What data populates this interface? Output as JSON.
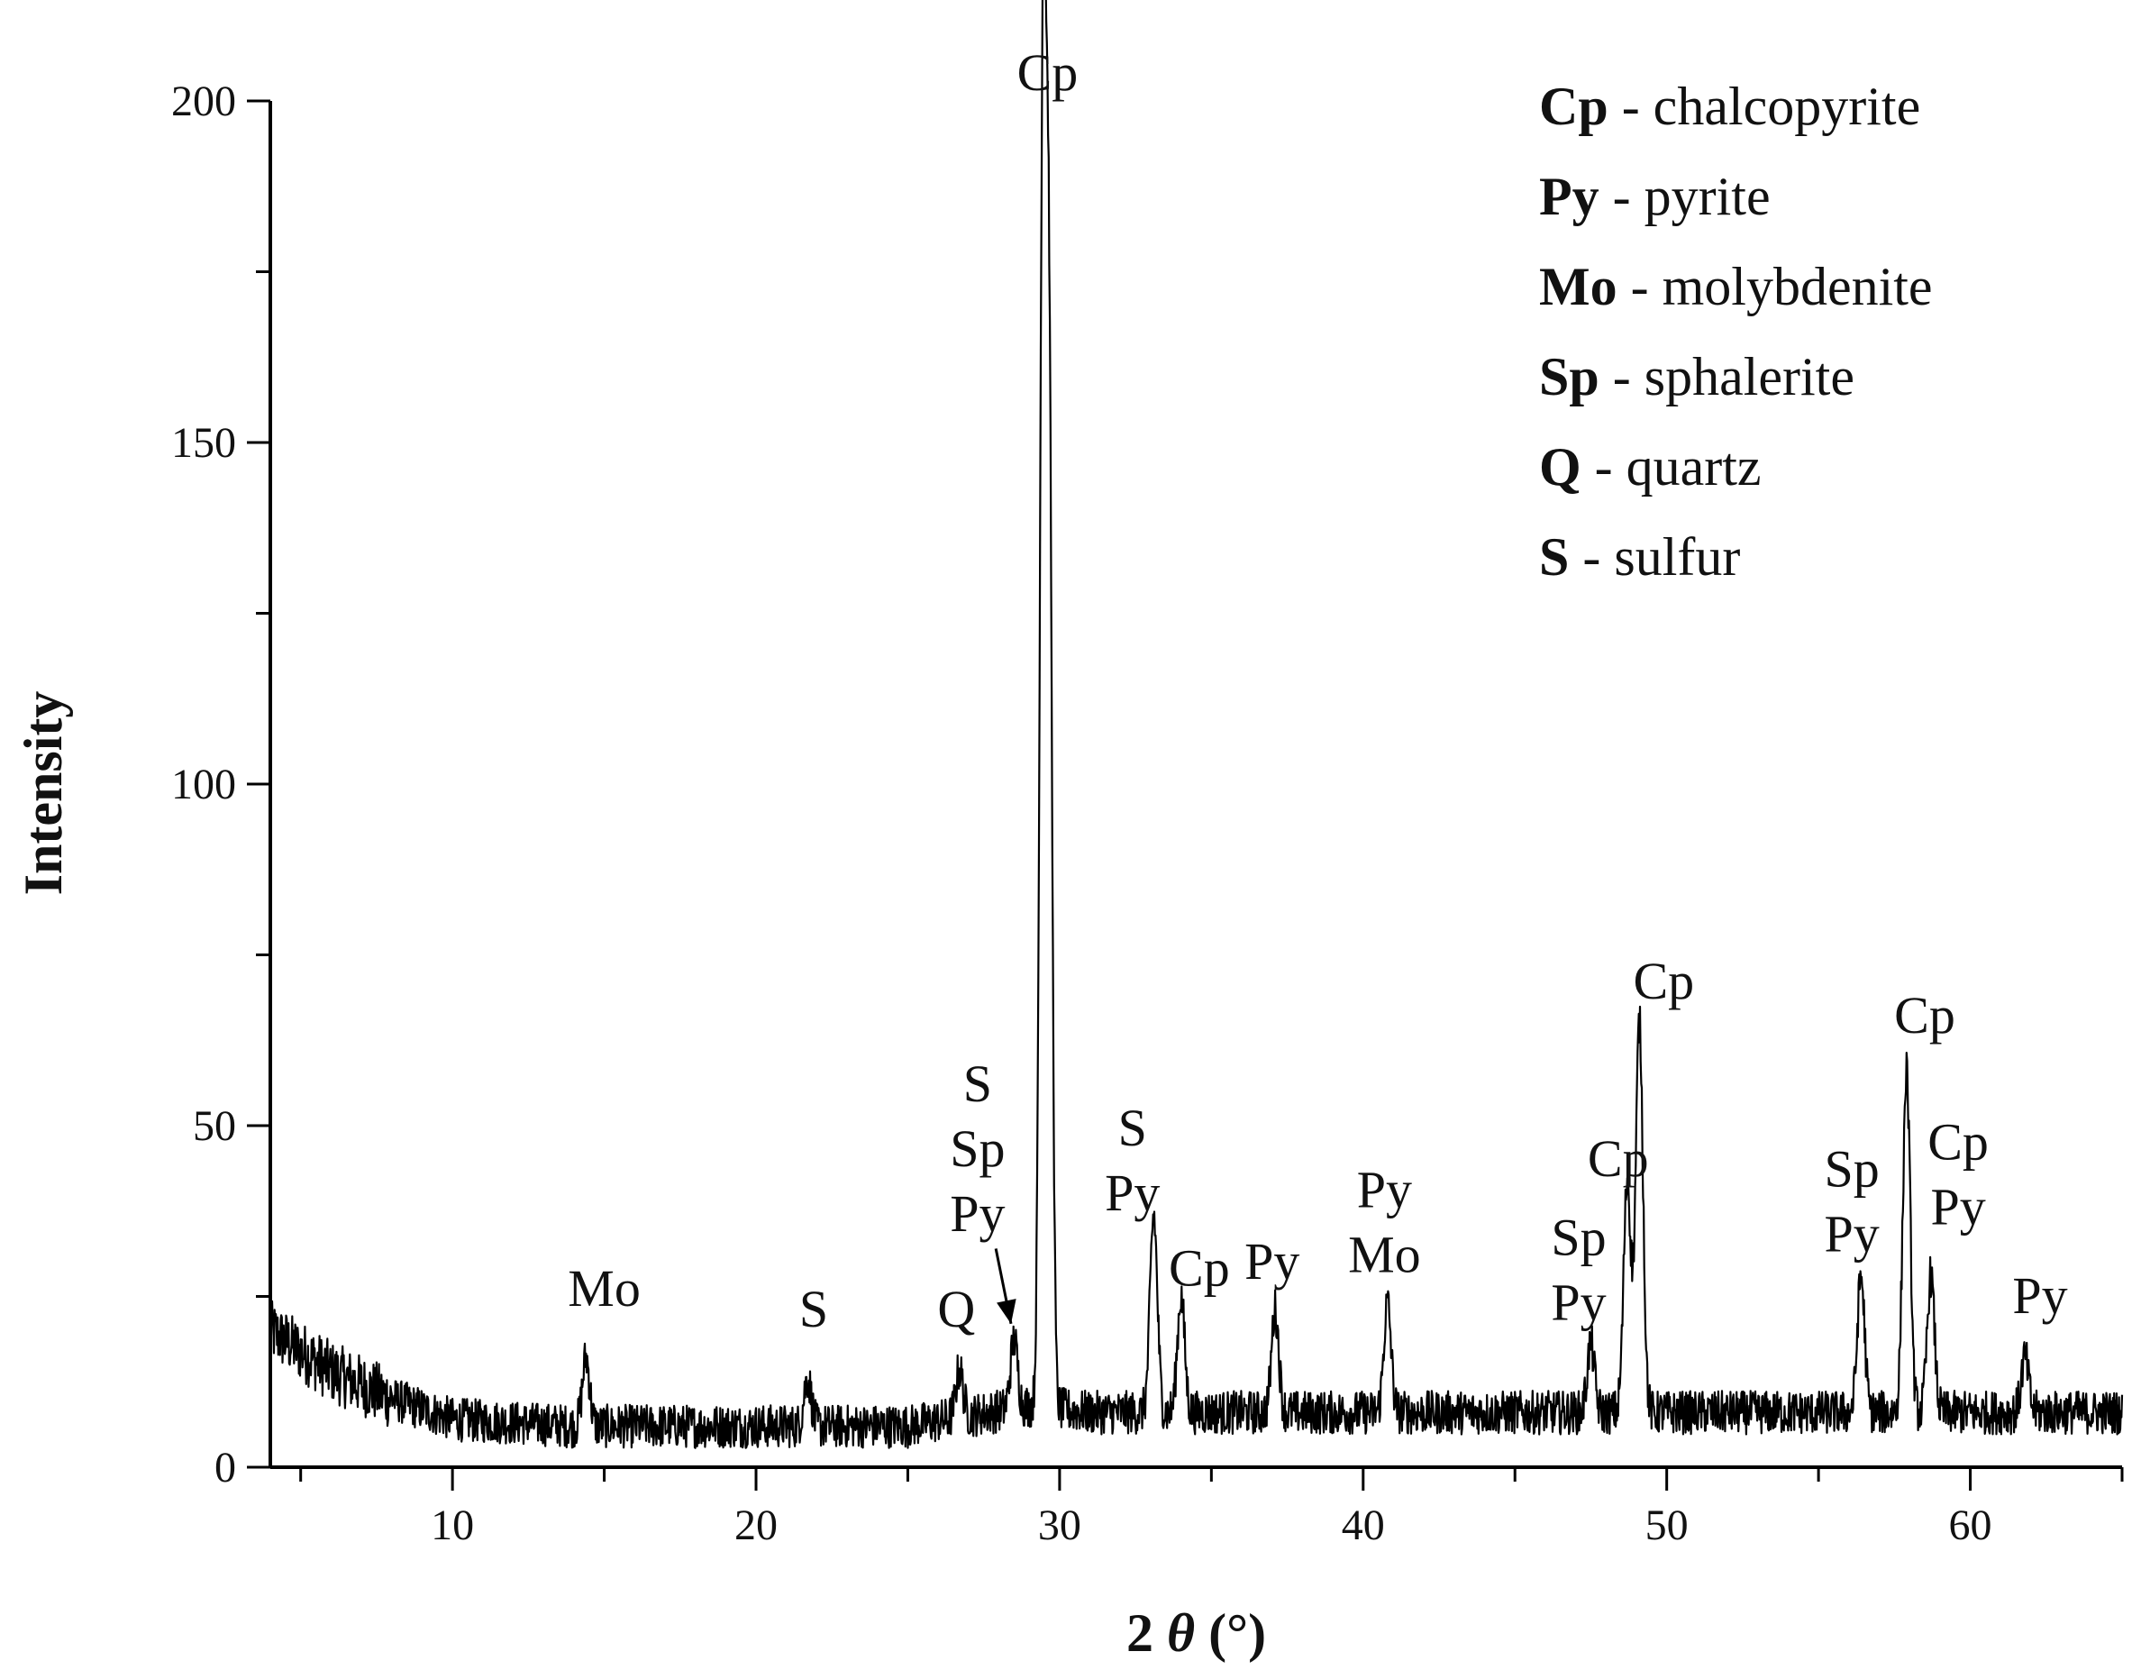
{
  "chart_data": {
    "type": "line",
    "xlabel_main": "2",
    "xlabel_symbol": "θ",
    "xlabel_unit": "(°)",
    "ylabel": "Intensity",
    "xlim": [
      4,
      65
    ],
    "ylim": [
      0,
      200
    ],
    "x_ticks": [
      10,
      20,
      30,
      40,
      50,
      60
    ],
    "y_ticks": [
      0,
      50,
      100,
      150,
      200
    ],
    "grid": false,
    "legend_position": "top-right",
    "legend": [
      {
        "abbr": "Cp",
        "text": " - chalcopyrite"
      },
      {
        "abbr": "Py",
        "text": " - pyrite"
      },
      {
        "abbr": "Mo",
        "text": " - molybdenite"
      },
      {
        "abbr": "Sp",
        "text": " - sphalerite"
      },
      {
        "abbr": "Q",
        "text": " - quartz"
      },
      {
        "abbr": "S",
        "text": " - sulfur"
      }
    ],
    "peaks": [
      {
        "x": 14.4,
        "height": 10
      },
      {
        "x": 21.7,
        "height": 7
      },
      {
        "x": 26.7,
        "height": 7
      },
      {
        "x": 28.5,
        "height": 10
      },
      {
        "x": 29.45,
        "height": 192
      },
      {
        "x": 29.65,
        "height": 150
      },
      {
        "x": 33.1,
        "height": 29
      },
      {
        "x": 34.0,
        "height": 17
      },
      {
        "x": 37.1,
        "height": 15
      },
      {
        "x": 40.8,
        "height": 16
      },
      {
        "x": 47.5,
        "height": 10
      },
      {
        "x": 48.7,
        "height": 34
      },
      {
        "x": 49.1,
        "height": 57
      },
      {
        "x": 56.4,
        "height": 20
      },
      {
        "x": 57.9,
        "height": 50
      },
      {
        "x": 58.7,
        "height": 20
      },
      {
        "x": 61.8,
        "height": 8
      }
    ],
    "baseline": [
      {
        "x": 4,
        "y": 20
      },
      {
        "x": 6,
        "y": 14
      },
      {
        "x": 8,
        "y": 10
      },
      {
        "x": 10,
        "y": 7
      },
      {
        "x": 14,
        "y": 6
      },
      {
        "x": 25,
        "y": 6
      },
      {
        "x": 29,
        "y": 9
      },
      {
        "x": 31,
        "y": 8
      },
      {
        "x": 40,
        "y": 8
      },
      {
        "x": 48,
        "y": 8
      },
      {
        "x": 55,
        "y": 8
      },
      {
        "x": 65,
        "y": 8
      }
    ],
    "annotations": [
      {
        "lines": [
          "Cp"
        ],
        "x": 29.6,
        "y": 200,
        "name": "cp-main"
      },
      {
        "lines": [
          "Mo"
        ],
        "x": 15.0,
        "y": 22,
        "name": "mo-14"
      },
      {
        "lines": [
          "S"
        ],
        "x": 21.9,
        "y": 19,
        "name": "s-22"
      },
      {
        "lines": [
          "Q"
        ],
        "x": 26.6,
        "y": 19,
        "name": "q-27"
      },
      {
        "lines": [
          "S",
          "Sp",
          "Py"
        ],
        "x": 27.3,
        "y": 33,
        "name": "s-sp-py-28"
      },
      {
        "lines": [
          "S",
          "Py"
        ],
        "x": 32.4,
        "y": 36,
        "name": "s-py-33"
      },
      {
        "lines": [
          "Cp"
        ],
        "x": 34.6,
        "y": 25,
        "name": "cp-34"
      },
      {
        "lines": [
          "Py"
        ],
        "x": 37.0,
        "y": 26,
        "name": "py-37"
      },
      {
        "lines": [
          "Py",
          "Mo"
        ],
        "x": 40.7,
        "y": 27,
        "name": "py-mo-41"
      },
      {
        "lines": [
          "Cp"
        ],
        "x": 48.4,
        "y": 41,
        "name": "cp-48"
      },
      {
        "lines": [
          "Sp",
          "Py"
        ],
        "x": 47.1,
        "y": 20,
        "name": "sp-py-47"
      },
      {
        "lines": [
          "Cp"
        ],
        "x": 49.9,
        "y": 67,
        "name": "cp-49"
      },
      {
        "lines": [
          "Sp",
          "Py"
        ],
        "x": 56.1,
        "y": 30,
        "name": "sp-py-56"
      },
      {
        "lines": [
          "Cp"
        ],
        "x": 58.5,
        "y": 62,
        "name": "cp-58"
      },
      {
        "lines": [
          "Cp",
          "Py"
        ],
        "x": 59.6,
        "y": 34,
        "name": "cp-py-59"
      },
      {
        "lines": [
          "Py"
        ],
        "x": 62.3,
        "y": 21,
        "name": "py-62"
      }
    ],
    "arrow": {
      "from": {
        "x": 27.9,
        "y": 32
      },
      "to": {
        "x": 28.4,
        "y": 21
      }
    }
  }
}
